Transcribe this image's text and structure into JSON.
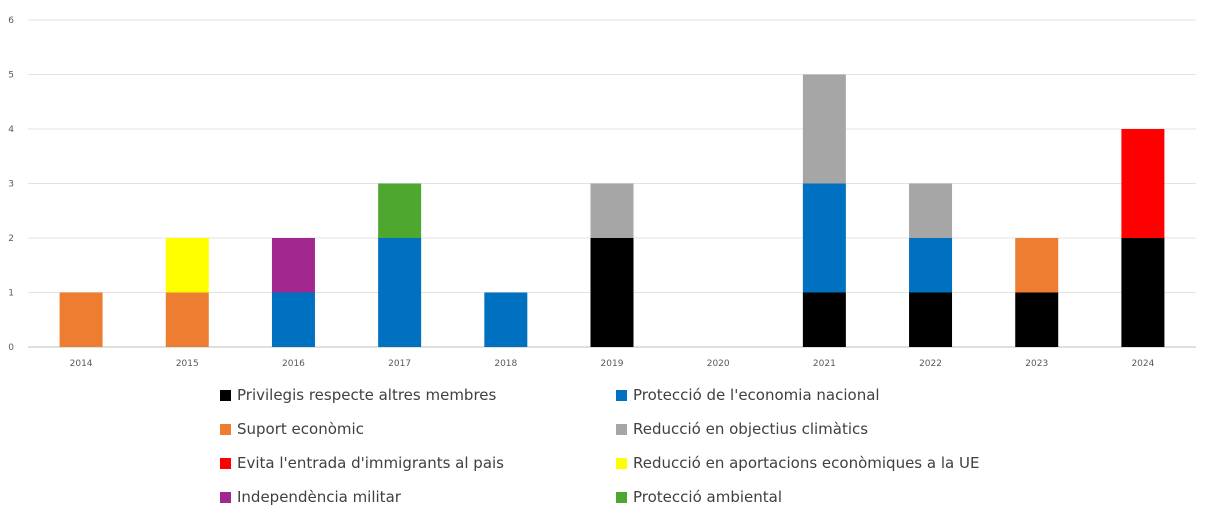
{
  "chart_data": {
    "type": "bar",
    "stacked": true,
    "title": "",
    "xlabel": "",
    "ylabel": "",
    "ylim": [
      0,
      6
    ],
    "yticks": [
      0,
      1,
      2,
      3,
      4,
      5,
      6
    ],
    "grid": true,
    "legend_position": "bottom",
    "categories": [
      "2014",
      "2015",
      "2016",
      "2017",
      "2018",
      "2019",
      "2020",
      "2021",
      "2022",
      "2023",
      "2024"
    ],
    "series": [
      {
        "name": "Privilegis respecte altres membres",
        "color": "#000000",
        "values": [
          0,
          0,
          0,
          0,
          0,
          2,
          0,
          1,
          1,
          1,
          2
        ]
      },
      {
        "name": "Suport econòmic",
        "color": "#ED7D31",
        "values": [
          1,
          1,
          0,
          0,
          0,
          0,
          0,
          0,
          0,
          1,
          0
        ]
      },
      {
        "name": "Evita l'entrada d'immigrants al pais",
        "color": "#FF0000",
        "values": [
          0,
          0,
          0,
          0,
          0,
          0,
          0,
          0,
          0,
          0,
          2
        ]
      },
      {
        "name": "Independència militar",
        "color": "#A0288F",
        "values": [
          0,
          0,
          1,
          0,
          0,
          0,
          0,
          0,
          0,
          0,
          0
        ]
      },
      {
        "name": "Protecció de l'economia nacional",
        "color": "#0070C0",
        "values": [
          0,
          0,
          1,
          2,
          1,
          0,
          0,
          2,
          1,
          0,
          0
        ]
      },
      {
        "name": "Reducció en objectius climàtics",
        "color": "#A6A6A6",
        "values": [
          0,
          0,
          0,
          0,
          0,
          1,
          0,
          2,
          1,
          0,
          0
        ]
      },
      {
        "name": "Reducció en aportacions econòmiques a la UE",
        "color": "#FFFF00",
        "values": [
          0,
          1,
          0,
          0,
          0,
          0,
          0,
          0,
          0,
          0,
          0
        ]
      },
      {
        "name": "Protecció ambiental",
        "color": "#4EA72E",
        "values": [
          0,
          0,
          0,
          1,
          0,
          0,
          0,
          0,
          0,
          0,
          0
        ]
      }
    ],
    "stack_order": [
      "Privilegis respecte altres membres",
      "Suport econòmic",
      "Protecció de l'economia nacional",
      "Independència militar",
      "Reducció en aportacions econòmiques a la UE",
      "Protecció ambiental",
      "Reducció en objectius climàtics",
      "Evita l'entrada d'immigrants al pais"
    ],
    "legend_order": [
      "Privilegis respecte altres membres",
      "Protecció de l'economia nacional",
      "Suport econòmic",
      "Reducció en objectius climàtics",
      "Evita l'entrada d'immigrants al pais",
      "Reducció en aportacions econòmiques a la UE",
      "Independència militar",
      "Protecció ambiental"
    ]
  }
}
